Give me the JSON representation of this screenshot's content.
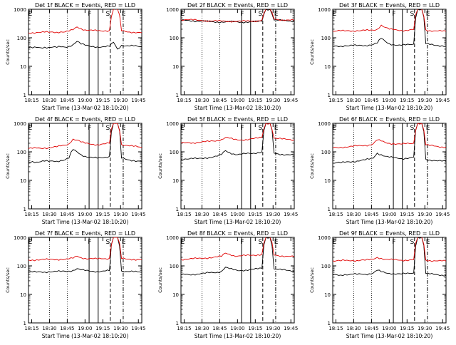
{
  "chart_data": [
    {
      "type": "line",
      "title": "Det 1f BLACK = Events, RED = LLD",
      "ylabel": "Counts/sec",
      "xlabel": "Start Time (13-Mar-02 18:10:20)",
      "xticks": [
        "18:15",
        "18:30",
        "18:45",
        "19:00",
        "19:15",
        "19:30",
        "19:45"
      ],
      "yticks": [
        "1",
        "10",
        "100",
        "1000"
      ],
      "ylim": [
        1,
        1000
      ],
      "yscale": "log",
      "markers": [
        "E",
        "F",
        "S",
        "E"
      ],
      "series": [
        {
          "color": "#000000",
          "values": [
            45,
            44,
            46,
            45,
            47,
            46,
            47,
            46,
            48,
            47,
            50,
            58,
            75,
            60,
            55,
            52,
            50,
            48,
            47,
            48,
            50,
            70,
            40,
            55,
            52,
            51,
            52,
            50,
            48
          ]
        },
        {
          "color": "#e00000",
          "values": [
            150,
            152,
            155,
            153,
            158,
            155,
            160,
            158,
            162,
            160,
            170,
            190,
            240,
            210,
            190,
            185,
            180,
            175,
            172,
            178,
            180,
            1000,
            1000,
            175,
            165,
            160,
            158,
            155,
            150
          ]
        }
      ]
    },
    {
      "type": "line",
      "title": "Det 2f BLACK = Events, RED = LLD",
      "ylabel": "",
      "xlabel": "Start Time (13-Mar-02 18:10:20)",
      "xticks": [
        "18:15",
        "18:30",
        "18:45",
        "19:00",
        "19:15",
        "19:30",
        "19:45"
      ],
      "yticks": [
        "1",
        "10",
        "100",
        "1000"
      ],
      "ylim": [
        1,
        1000
      ],
      "yscale": "log",
      "markers": [
        "E",
        "F",
        "S",
        "E"
      ],
      "series": [
        {
          "color": "#000000",
          "values": [
            400,
            410,
            405,
            395,
            385,
            380,
            375,
            370,
            365,
            362,
            360,
            358,
            360,
            362,
            360,
            358,
            360,
            362,
            365,
            370,
            380,
            1000,
            1000,
            420,
            410,
            400,
            395,
            390,
            385
          ]
        },
        {
          "color": "#e00000",
          "values": [
            430,
            440,
            430,
            420,
            410,
            405,
            400,
            395,
            390,
            385,
            382,
            380,
            382,
            385,
            380,
            378,
            380,
            385,
            390,
            395,
            420,
            1000,
            1000,
            460,
            440,
            430,
            420,
            415,
            410
          ]
        }
      ]
    },
    {
      "type": "line",
      "title": "Det 3f BLACK = Events, RED = LLD",
      "ylabel": "Counts/sec",
      "xlabel": "Start Time (13-Mar-02 18:10:20)",
      "xticks": [
        "18:15",
        "18:30",
        "18:45",
        "19:00",
        "19:15",
        "19:30",
        "19:45"
      ],
      "yticks": [
        "1",
        "10",
        "100",
        "1000"
      ],
      "ylim": [
        1,
        1000
      ],
      "yscale": "log",
      "markers": [
        "E",
        "F",
        "S",
        "E"
      ],
      "series": [
        {
          "color": "#000000",
          "values": [
            50,
            52,
            51,
            53,
            52,
            54,
            53,
            55,
            54,
            56,
            58,
            65,
            95,
            75,
            62,
            58,
            55,
            54,
            56,
            58,
            60,
            1000,
            1000,
            62,
            58,
            55,
            54,
            53,
            52
          ]
        },
        {
          "color": "#e00000",
          "values": [
            170,
            172,
            175,
            173,
            178,
            175,
            180,
            178,
            182,
            180,
            185,
            200,
            280,
            230,
            200,
            190,
            185,
            182,
            185,
            190,
            195,
            1000,
            1000,
            190,
            180,
            175,
            172,
            170,
            168
          ]
        }
      ]
    },
    {
      "type": "line",
      "title": "Det 4f BLACK = Events, RED = LLD",
      "ylabel": "Counts/sec",
      "xlabel": "Start Time (13-Mar-02 18:10:20)",
      "xticks": [
        "18:15",
        "18:30",
        "18:45",
        "19:00",
        "19:15",
        "19:30",
        "19:45"
      ],
      "yticks": [
        "1",
        "10",
        "100",
        "1000"
      ],
      "ylim": [
        1,
        1000
      ],
      "yscale": "log",
      "markers": [
        "E",
        "F",
        "S",
        "E"
      ],
      "series": [
        {
          "color": "#000000",
          "values": [
            45,
            46,
            44,
            45,
            47,
            46,
            48,
            47,
            50,
            52,
            60,
            120,
            100,
            80,
            70,
            65,
            62,
            60,
            62,
            65,
            70,
            1000,
            1000,
            60,
            55,
            52,
            50,
            48,
            46
          ]
        },
        {
          "color": "#e00000",
          "values": [
            130,
            132,
            135,
            133,
            138,
            140,
            145,
            150,
            160,
            170,
            190,
            280,
            260,
            220,
            200,
            190,
            185,
            180,
            185,
            190,
            200,
            1000,
            1000,
            180,
            170,
            160,
            155,
            150,
            145
          ]
        }
      ]
    },
    {
      "type": "line",
      "title": "Det 5f BLACK = Events, RED = LLD",
      "ylabel": "Counts/sec",
      "xlabel": "Start Time (13-Mar-02 18:10:20)",
      "xticks": [
        "18:15",
        "18:30",
        "18:45",
        "19:00",
        "19:15",
        "19:30",
        "19:45"
      ],
      "yticks": [
        "1",
        "10",
        "100",
        "1000"
      ],
      "ylim": [
        1,
        1000
      ],
      "yscale": "log",
      "markers": [
        "E",
        "F",
        "S",
        "E"
      ],
      "series": [
        {
          "color": "#000000",
          "values": [
            55,
            57,
            56,
            58,
            57,
            60,
            62,
            64,
            66,
            70,
            80,
            110,
            95,
            85,
            80,
            82,
            85,
            88,
            90,
            95,
            100,
            1000,
            1000,
            90,
            85,
            82,
            80,
            78,
            75
          ]
        },
        {
          "color": "#e00000",
          "values": [
            200,
            205,
            210,
            208,
            215,
            220,
            225,
            230,
            240,
            250,
            270,
            320,
            300,
            270,
            260,
            265,
            270,
            280,
            290,
            300,
            320,
            1000,
            1000,
            300,
            290,
            280,
            275,
            270,
            265
          ]
        }
      ]
    },
    {
      "type": "line",
      "title": "Det 6f BLACK = Events, RED = LLD",
      "ylabel": "Counts/sec",
      "xlabel": "Start Time (13-Mar-02 18:10:20)",
      "xticks": [
        "18:15",
        "18:30",
        "18:45",
        "19:00",
        "19:15",
        "19:30",
        "19:45"
      ],
      "yticks": [
        "1",
        "10",
        "100",
        "1000"
      ],
      "ylim": [
        1,
        1000
      ],
      "yscale": "log",
      "markers": [
        "E",
        "F",
        "S",
        "E"
      ],
      "series": [
        {
          "color": "#000000",
          "values": [
            40,
            42,
            41,
            43,
            45,
            46,
            48,
            50,
            52,
            55,
            60,
            90,
            80,
            70,
            65,
            62,
            60,
            58,
            60,
            62,
            65,
            1000,
            1000,
            55,
            52,
            50,
            48,
            47,
            46
          ]
        },
        {
          "color": "#e00000",
          "values": [
            140,
            142,
            145,
            148,
            150,
            155,
            160,
            165,
            170,
            175,
            190,
            260,
            240,
            210,
            200,
            195,
            190,
            185,
            190,
            195,
            200,
            1000,
            1000,
            175,
            165,
            160,
            155,
            150,
            148
          ]
        }
      ]
    },
    {
      "type": "line",
      "title": "Det 7f BLACK = Events, RED = LLD",
      "ylabel": "Counts/sec",
      "xlabel": "Start Time (13-Mar-02 18:10:20)",
      "xticks": [
        "18:15",
        "18:30",
        "18:45",
        "19:00",
        "19:15",
        "19:30",
        "19:45"
      ],
      "yticks": [
        "1",
        "10",
        "100",
        "1000"
      ],
      "ylim": [
        1,
        1000
      ],
      "yscale": "log",
      "markers": [
        "E",
        "F",
        "S",
        "E"
      ],
      "series": [
        {
          "color": "#000000",
          "values": [
            60,
            61,
            60,
            62,
            61,
            63,
            62,
            64,
            63,
            65,
            66,
            70,
            80,
            72,
            68,
            66,
            65,
            64,
            65,
            66,
            68,
            1000,
            1000,
            66,
            64,
            63,
            62,
            61,
            60
          ]
        },
        {
          "color": "#e00000",
          "values": [
            160,
            162,
            165,
            163,
            168,
            165,
            170,
            168,
            172,
            170,
            175,
            185,
            220,
            195,
            185,
            180,
            178,
            175,
            178,
            180,
            185,
            1000,
            1000,
            180,
            175,
            172,
            170,
            168,
            165
          ]
        }
      ]
    },
    {
      "type": "line",
      "title": "Det 8f BLACK = Events, RED = LLD",
      "ylabel": "Counts/sec",
      "xlabel": "Start Time (13-Mar-02 18:10:20)",
      "xticks": [
        "18:15",
        "18:30",
        "18:45",
        "19:00",
        "19:15",
        "19:30",
        "19:45"
      ],
      "yticks": [
        "1",
        "10",
        "100",
        "1000"
      ],
      "ylim": [
        1,
        1000
      ],
      "yscale": "log",
      "markers": [
        "E",
        "F",
        "S",
        "E"
      ],
      "series": [
        {
          "color": "#000000",
          "values": [
            48,
            50,
            49,
            51,
            52,
            54,
            55,
            57,
            58,
            60,
            65,
            90,
            80,
            72,
            68,
            70,
            72,
            74,
            76,
            78,
            82,
            1000,
            1000,
            78,
            75,
            72,
            70,
            68,
            66
          ]
        },
        {
          "color": "#e00000",
          "values": [
            170,
            172,
            175,
            178,
            180,
            185,
            190,
            195,
            200,
            205,
            215,
            280,
            260,
            230,
            220,
            225,
            230,
            235,
            240,
            245,
            255,
            1000,
            1000,
            240,
            230,
            225,
            220,
            215,
            210
          ]
        }
      ]
    },
    {
      "type": "line",
      "title": "Det 9f BLACK = Events, RED = LLD",
      "ylabel": "Counts/sec",
      "xlabel": "Start Time (13-Mar-02 18:10:20)",
      "xticks": [
        "18:15",
        "18:30",
        "18:45",
        "19:00",
        "19:15",
        "19:30",
        "19:45"
      ],
      "yticks": [
        "1",
        "10",
        "100",
        "1000"
      ],
      "ylim": [
        1,
        1000
      ],
      "yscale": "log",
      "markers": [
        "E",
        "F",
        "S",
        "E"
      ],
      "series": [
        {
          "color": "#000000",
          "values": [
            48,
            49,
            48,
            50,
            49,
            51,
            50,
            52,
            51,
            53,
            56,
            70,
            62,
            57,
            55,
            54,
            53,
            52,
            53,
            54,
            56,
            1000,
            1000,
            54,
            52,
            50,
            49,
            48,
            47
          ]
        },
        {
          "color": "#e00000",
          "values": [
            150,
            152,
            150,
            155,
            152,
            158,
            155,
            160,
            158,
            162,
            170,
            200,
            185,
            170,
            165,
            163,
            160,
            158,
            160,
            162,
            165,
            1000,
            1000,
            160,
            155,
            152,
            150,
            148,
            147
          ]
        }
      ]
    }
  ]
}
